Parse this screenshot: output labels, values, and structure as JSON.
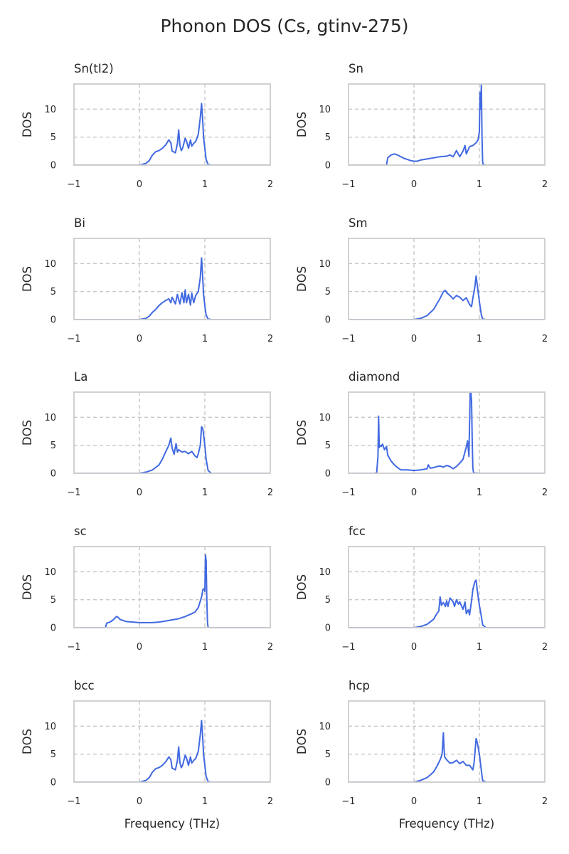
{
  "chart_data": {
    "type": "line",
    "title": "Phonon DOS (Cs, gtinv-275)",
    "xlabel": "Frequency (THz)",
    "ylabel": "DOS",
    "xlim": [
      -1,
      2
    ],
    "ylim": [
      0,
      14.5
    ],
    "xticks": [
      -1,
      0,
      1,
      2
    ],
    "yticks": [
      0,
      5,
      10
    ],
    "xtick_labels": [
      "−1",
      "0",
      "1",
      "2"
    ],
    "ytick_labels": [
      "0",
      "5",
      "10"
    ],
    "grid": "vertical dashed at 0 and 1; horizontal dashed at 5 and 10",
    "line_color": "#4169e1",
    "panels": [
      {
        "name": "Sn(tI2)",
        "x": [
          -1.0,
          -0.1,
          0.0,
          0.1,
          0.15,
          0.2,
          0.25,
          0.3,
          0.35,
          0.4,
          0.45,
          0.48,
          0.5,
          0.55,
          0.58,
          0.6,
          0.62,
          0.64,
          0.66,
          0.7,
          0.72,
          0.75,
          0.78,
          0.8,
          0.83,
          0.86,
          0.9,
          0.93,
          0.95,
          0.97,
          0.98,
          1.0,
          1.02,
          1.05,
          1.1,
          2.0
        ],
        "y": [
          0,
          0,
          0,
          0.3,
          0.8,
          1.8,
          2.4,
          2.6,
          3.0,
          3.6,
          4.5,
          4.0,
          2.5,
          2.2,
          3.8,
          6.3,
          3.5,
          2.6,
          3.0,
          4.8,
          4.3,
          3.0,
          4.5,
          3.4,
          3.9,
          4.2,
          5.5,
          8.5,
          11.0,
          7.5,
          5.0,
          3.0,
          1.0,
          0.1,
          0,
          0
        ]
      },
      {
        "name": "Sn",
        "x": [
          -1.0,
          -0.42,
          -0.4,
          -0.35,
          -0.3,
          -0.25,
          -0.2,
          -0.15,
          -0.1,
          -0.05,
          0.0,
          0.05,
          0.1,
          0.15,
          0.2,
          0.3,
          0.4,
          0.5,
          0.55,
          0.6,
          0.65,
          0.7,
          0.75,
          0.78,
          0.8,
          0.85,
          0.9,
          0.95,
          0.98,
          1.0,
          1.01,
          1.02,
          1.03,
          1.04,
          1.05,
          1.06,
          1.1,
          2.0
        ],
        "y": [
          0,
          0,
          1.3,
          1.8,
          2.0,
          1.8,
          1.5,
          1.2,
          1.0,
          0.8,
          0.7,
          0.7,
          0.9,
          1.0,
          1.1,
          1.3,
          1.5,
          1.6,
          1.8,
          1.5,
          2.6,
          1.5,
          2.5,
          3.5,
          2.0,
          3.3,
          3.5,
          4.0,
          4.5,
          6.0,
          13.0,
          10.0,
          14.5,
          5.0,
          0.5,
          0.1,
          0,
          0
        ]
      },
      {
        "name": "Bi",
        "x": [
          -1.0,
          -0.1,
          0.0,
          0.1,
          0.15,
          0.2,
          0.25,
          0.3,
          0.35,
          0.4,
          0.45,
          0.48,
          0.5,
          0.55,
          0.58,
          0.6,
          0.62,
          0.65,
          0.68,
          0.7,
          0.72,
          0.75,
          0.78,
          0.8,
          0.83,
          0.86,
          0.9,
          0.93,
          0.95,
          0.97,
          0.98,
          1.0,
          1.02,
          1.05,
          1.1,
          2.0
        ],
        "y": [
          0,
          0,
          0,
          0.2,
          0.6,
          1.3,
          1.8,
          2.5,
          3.0,
          3.4,
          3.7,
          3.0,
          4.0,
          2.8,
          4.5,
          3.6,
          2.8,
          4.8,
          3.0,
          5.3,
          3.0,
          4.5,
          2.6,
          4.7,
          3.0,
          4.3,
          5.0,
          7.5,
          11.0,
          7.0,
          4.5,
          2.5,
          0.8,
          0.1,
          0,
          0
        ]
      },
      {
        "name": "Sm",
        "x": [
          -1.0,
          0.0,
          0.1,
          0.2,
          0.3,
          0.35,
          0.4,
          0.45,
          0.48,
          0.5,
          0.55,
          0.6,
          0.65,
          0.7,
          0.75,
          0.8,
          0.85,
          0.88,
          0.9,
          0.93,
          0.95,
          0.97,
          1.0,
          1.03,
          1.05,
          1.1,
          2.0
        ],
        "y": [
          0,
          0,
          0.2,
          0.7,
          1.8,
          2.8,
          3.8,
          5.0,
          5.2,
          4.8,
          4.3,
          3.7,
          4.3,
          4.0,
          3.4,
          3.9,
          2.7,
          2.3,
          3.8,
          5.8,
          7.8,
          6.0,
          3.2,
          0.8,
          0.1,
          0,
          0
        ]
      },
      {
        "name": "La",
        "x": [
          -1.0,
          0.0,
          0.1,
          0.2,
          0.3,
          0.35,
          0.4,
          0.45,
          0.48,
          0.5,
          0.53,
          0.56,
          0.58,
          0.6,
          0.65,
          0.7,
          0.75,
          0.8,
          0.85,
          0.88,
          0.9,
          0.93,
          0.95,
          0.97,
          1.0,
          1.02,
          1.05,
          1.1,
          2.0
        ],
        "y": [
          0,
          0,
          0.2,
          0.6,
          1.5,
          2.5,
          3.8,
          5.0,
          6.3,
          4.5,
          3.4,
          5.3,
          3.8,
          4.2,
          3.8,
          3.9,
          3.5,
          3.9,
          3.1,
          2.8,
          3.5,
          5.0,
          8.3,
          8.0,
          5.0,
          2.5,
          0.5,
          0,
          0
        ]
      },
      {
        "name": "diamond",
        "x": [
          -1.0,
          -0.6,
          -0.57,
          -0.55,
          -0.54,
          -0.53,
          -0.52,
          -0.5,
          -0.48,
          -0.45,
          -0.42,
          -0.4,
          -0.35,
          -0.3,
          -0.25,
          -0.2,
          -0.15,
          -0.1,
          0.0,
          0.1,
          0.15,
          0.2,
          0.22,
          0.25,
          0.3,
          0.35,
          0.4,
          0.45,
          0.5,
          0.55,
          0.6,
          0.65,
          0.7,
          0.75,
          0.8,
          0.82,
          0.84,
          0.86,
          0.87,
          0.88,
          0.89,
          0.9,
          0.91,
          0.92,
          1.0,
          2.0
        ],
        "y": [
          0,
          0,
          0.1,
          3.0,
          10.2,
          4.6,
          5.0,
          4.8,
          5.2,
          4.2,
          4.8,
          3.2,
          2.2,
          1.5,
          1.0,
          0.6,
          0.6,
          0.6,
          0.5,
          0.6,
          0.7,
          0.8,
          1.5,
          0.9,
          1.0,
          1.2,
          1.3,
          1.1,
          1.4,
          1.2,
          0.8,
          1.2,
          1.8,
          2.5,
          4.7,
          5.8,
          3.0,
          14.5,
          14.5,
          13.0,
          6.0,
          1.0,
          0.2,
          0.05,
          0,
          0
        ]
      },
      {
        "name": "sc",
        "x": [
          -1.0,
          -0.52,
          -0.5,
          -0.45,
          -0.4,
          -0.35,
          -0.32,
          -0.3,
          -0.25,
          -0.2,
          -0.1,
          0.0,
          0.1,
          0.2,
          0.3,
          0.4,
          0.5,
          0.6,
          0.7,
          0.8,
          0.85,
          0.9,
          0.95,
          0.97,
          0.99,
          1.0,
          1.01,
          1.02,
          1.03,
          1.04,
          1.05,
          2.0
        ],
        "y": [
          0,
          0,
          0.8,
          1.0,
          1.4,
          2.0,
          1.8,
          1.5,
          1.3,
          1.1,
          1.0,
          0.9,
          0.9,
          0.9,
          1.0,
          1.2,
          1.4,
          1.6,
          2.0,
          2.5,
          2.8,
          3.6,
          5.5,
          6.8,
          7.0,
          6.5,
          13.0,
          12.0,
          5.0,
          1.0,
          0,
          0
        ]
      },
      {
        "name": "fcc",
        "x": [
          -1.0,
          0.0,
          0.1,
          0.2,
          0.3,
          0.35,
          0.38,
          0.4,
          0.42,
          0.45,
          0.48,
          0.5,
          0.52,
          0.55,
          0.6,
          0.62,
          0.65,
          0.68,
          0.7,
          0.75,
          0.78,
          0.8,
          0.83,
          0.85,
          0.88,
          0.9,
          0.93,
          0.95,
          0.97,
          1.0,
          1.03,
          1.05,
          1.1,
          2.0
        ],
        "y": [
          0,
          0,
          0.2,
          0.6,
          1.5,
          2.5,
          3.0,
          5.5,
          4.0,
          4.5,
          3.8,
          4.8,
          3.8,
          5.3,
          4.6,
          3.8,
          5.0,
          4.2,
          4.6,
          3.3,
          4.6,
          2.5,
          3.2,
          2.3,
          4.8,
          6.8,
          8.2,
          8.5,
          6.5,
          4.0,
          2.0,
          0.5,
          0,
          0
        ]
      },
      {
        "name": "bcc",
        "x": [
          -1.0,
          -0.1,
          0.0,
          0.1,
          0.15,
          0.2,
          0.25,
          0.3,
          0.35,
          0.4,
          0.45,
          0.48,
          0.5,
          0.55,
          0.58,
          0.6,
          0.62,
          0.64,
          0.66,
          0.7,
          0.72,
          0.75,
          0.78,
          0.8,
          0.83,
          0.86,
          0.9,
          0.93,
          0.95,
          0.97,
          0.98,
          1.0,
          1.02,
          1.05,
          1.1,
          2.0
        ],
        "y": [
          0,
          0,
          0,
          0.3,
          0.8,
          1.8,
          2.4,
          2.6,
          3.0,
          3.6,
          4.5,
          4.0,
          2.5,
          2.2,
          3.8,
          6.3,
          3.5,
          2.6,
          3.0,
          4.8,
          4.3,
          3.0,
          4.5,
          3.4,
          3.9,
          4.2,
          5.5,
          8.5,
          11.0,
          7.5,
          5.0,
          3.0,
          1.0,
          0.1,
          0,
          0
        ]
      },
      {
        "name": "hcp",
        "x": [
          -1.0,
          0.0,
          0.1,
          0.2,
          0.3,
          0.35,
          0.4,
          0.43,
          0.45,
          0.46,
          0.47,
          0.5,
          0.55,
          0.6,
          0.65,
          0.7,
          0.75,
          0.8,
          0.85,
          0.9,
          0.92,
          0.95,
          0.97,
          1.0,
          1.03,
          1.05,
          1.1,
          2.0
        ],
        "y": [
          0,
          0,
          0.3,
          0.8,
          1.8,
          2.8,
          4.0,
          5.0,
          8.8,
          6.0,
          4.5,
          4.0,
          3.4,
          3.5,
          3.9,
          3.3,
          3.7,
          3.0,
          3.0,
          2.2,
          3.5,
          7.8,
          7.0,
          5.0,
          2.0,
          0.3,
          0,
          0
        ]
      }
    ]
  }
}
